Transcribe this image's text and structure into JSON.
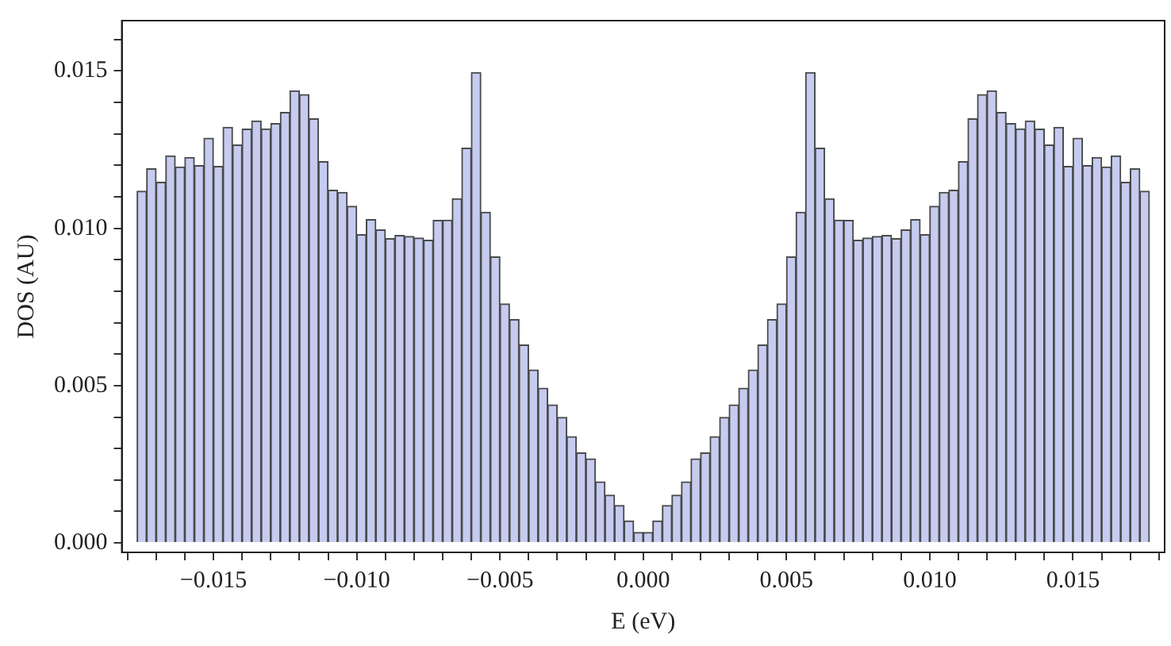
{
  "chart_data": {
    "type": "histogram",
    "xlabel": "E (eV)",
    "ylabel": "DOS (AU)",
    "color": "#c6cbf0",
    "bins": [
      -0.017667,
      -0.017333,
      -0.017,
      -0.016667,
      -0.016333,
      -0.016,
      -0.015667,
      -0.015333,
      -0.015,
      -0.014667,
      -0.014333,
      -0.014,
      -0.013667,
      -0.013333,
      -0.013,
      -0.012667,
      -0.012333,
      -0.012,
      -0.011667,
      -0.011333,
      -0.011,
      -0.010667,
      -0.010333,
      -0.01,
      -0.009667,
      -0.009333,
      -0.009,
      -0.008667,
      -0.008333,
      -0.008,
      -0.007667,
      -0.007333,
      -0.007,
      -0.006667,
      -0.006333,
      -0.006,
      -0.005667,
      -0.005333,
      -0.005,
      -0.004667,
      -0.004333,
      -0.004,
      -0.003667,
      -0.003333,
      -0.003,
      -0.002667,
      -0.002333,
      -0.002,
      -0.001667,
      -0.001333,
      -0.001,
      -0.000667,
      -0.000333,
      0,
      0.000333,
      0.000667,
      0.001,
      0.001333,
      0.001667,
      0.002,
      0.002333,
      0.002667,
      0.003,
      0.003333,
      0.003667,
      0.004,
      0.004333,
      0.004667,
      0.005,
      0.005333,
      0.005667,
      0.006,
      0.006333,
      0.006667,
      0.007,
      0.007333,
      0.007667,
      0.008,
      0.008333,
      0.008667,
      0.009,
      0.009333,
      0.009667,
      0.01,
      0.010333,
      0.010667,
      0.011,
      0.011333,
      0.011667,
      0.012,
      0.012333,
      0.012667,
      0.013,
      0.013333,
      0.013667,
      0.014,
      0.014333,
      0.014667,
      0.015,
      0.015333,
      0.015667,
      0.016,
      0.016333,
      0.016667,
      0.017,
      0.017333,
      0.017667
    ],
    "values": [
      0.01118,
      0.01189,
      0.01146,
      0.0123,
      0.01195,
      0.01225,
      0.01199,
      0.01286,
      0.01197,
      0.01321,
      0.01265,
      0.01315,
      0.01341,
      0.01316,
      0.01333,
      0.01368,
      0.01437,
      0.01425,
      0.01348,
      0.01212,
      0.01121,
      0.01114,
      0.0107,
      0.0098,
      0.01028,
      0.00995,
      0.00967,
      0.00977,
      0.00974,
      0.00969,
      0.00962,
      0.01025,
      0.01026,
      0.01094,
      0.01255,
      0.01495,
      0.01051,
      0.00909,
      0.0076,
      0.0071,
      0.00629,
      0.0055,
      0.00492,
      0.00439,
      0.00399,
      0.00338,
      0.00286,
      0.00267,
      0.00194,
      0.00152,
      0.00119,
      0.0007,
      0.00033,
      0.00033,
      0.0007,
      0.00119,
      0.00152,
      0.00194,
      0.00267,
      0.00286,
      0.00338,
      0.00399,
      0.00439,
      0.00492,
      0.0055,
      0.00629,
      0.0071,
      0.0076,
      0.00909,
      0.01051,
      0.01495,
      0.01255,
      0.01094,
      0.01026,
      0.01025,
      0.00962,
      0.00969,
      0.00974,
      0.00977,
      0.00967,
      0.00995,
      0.01028,
      0.0098,
      0.0107,
      0.01114,
      0.01121,
      0.01212,
      0.01348,
      0.01425,
      0.01437,
      0.01368,
      0.01333,
      0.01316,
      0.01341,
      0.01315,
      0.01265,
      0.01321,
      0.01197,
      0.01286,
      0.01199,
      0.01225,
      0.01195,
      0.0123,
      0.01146,
      0.01189,
      0.01118
    ],
    "xlim": [
      -0.0182,
      0.0182
    ],
    "xticks": [
      {
        "value": -0.018,
        "label": null
      },
      {
        "value": -0.017,
        "label": null
      },
      {
        "value": -0.016,
        "label": null
      },
      {
        "value": -0.015,
        "label": "−0.015"
      },
      {
        "value": -0.014,
        "label": null
      },
      {
        "value": -0.013,
        "label": null
      },
      {
        "value": -0.012,
        "label": null
      },
      {
        "value": -0.011,
        "label": null
      },
      {
        "value": -0.01,
        "label": "−0.010"
      },
      {
        "value": -0.009,
        "label": null
      },
      {
        "value": -0.008,
        "label": null
      },
      {
        "value": -0.007,
        "label": null
      },
      {
        "value": -0.006,
        "label": null
      },
      {
        "value": -0.005,
        "label": "−0.005"
      },
      {
        "value": -0.004,
        "label": null
      },
      {
        "value": -0.003,
        "label": null
      },
      {
        "value": -0.002,
        "label": null
      },
      {
        "value": -0.001,
        "label": null
      },
      {
        "value": 0,
        "label": "0.000"
      },
      {
        "value": 0.001,
        "label": null
      },
      {
        "value": 0.002,
        "label": null
      },
      {
        "value": 0.003,
        "label": null
      },
      {
        "value": 0.004,
        "label": null
      },
      {
        "value": 0.005,
        "label": "0.005"
      },
      {
        "value": 0.006,
        "label": null
      },
      {
        "value": 0.007,
        "label": null
      },
      {
        "value": 0.008,
        "label": null
      },
      {
        "value": 0.009,
        "label": null
      },
      {
        "value": 0.01,
        "label": "0.010"
      },
      {
        "value": 0.011,
        "label": null
      },
      {
        "value": 0.012,
        "label": null
      },
      {
        "value": 0.013,
        "label": null
      },
      {
        "value": 0.014,
        "label": null
      },
      {
        "value": 0.015,
        "label": "0.015"
      },
      {
        "value": 0.016,
        "label": null
      },
      {
        "value": 0.017,
        "label": null
      },
      {
        "value": 0.018,
        "label": null
      }
    ],
    "ylim": [
      -0.0003,
      0.0166
    ],
    "yticks": [
      {
        "value": 0,
        "label": "0.000"
      },
      {
        "value": 0.001,
        "label": null
      },
      {
        "value": 0.002,
        "label": null
      },
      {
        "value": 0.003,
        "label": null
      },
      {
        "value": 0.004,
        "label": null
      },
      {
        "value": 0.005,
        "label": "0.005"
      },
      {
        "value": 0.006,
        "label": null
      },
      {
        "value": 0.007,
        "label": null
      },
      {
        "value": 0.008,
        "label": null
      },
      {
        "value": 0.009,
        "label": null
      },
      {
        "value": 0.01,
        "label": "0.010"
      },
      {
        "value": 0.011,
        "label": null
      },
      {
        "value": 0.012,
        "label": null
      },
      {
        "value": 0.013,
        "label": null
      },
      {
        "value": 0.014,
        "label": null
      },
      {
        "value": 0.015,
        "label": "0.015"
      },
      {
        "value": 0.016,
        "label": null
      }
    ],
    "grid": false,
    "legend": false
  }
}
